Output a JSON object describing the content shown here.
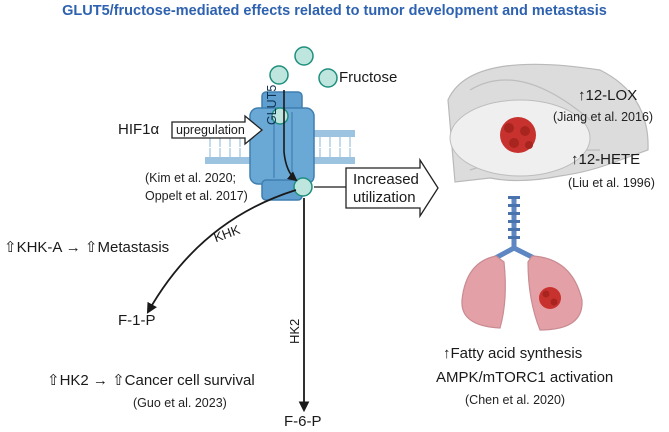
{
  "title": "GLUT5/fructose-mediated effects related to tumor development and metastasis",
  "fructose_label": "Fructose",
  "hif_label": "HIF1α",
  "upregulation_label": "upregulation",
  "transporter_label": "GLUT5",
  "citation_kim": "(Kim et al. 2020;",
  "citation_oppelt": "Oppelt et al. 2017)",
  "increased_line1": "Increased",
  "increased_line2": "utilization",
  "khk_label": "KHK",
  "hk2_label": "HK2",
  "khk_effect": "⇧KHK-A → ⇧Metastasis",
  "f1p_label": "F-1-P",
  "f6p_label": "F-6-P",
  "hk2_effect": "⇧HK2 → ⇧Cancer cell survival",
  "citation_guo": "(Guo et al. 2023)",
  "lox_label": "↑12-LOX",
  "citation_jiang": "(Jiang et al. 2016)",
  "hete_label": "↑12-HETE",
  "citation_liu": "(Liu et al. 1996)",
  "fatty_label": "↑Fatty acid synthesis",
  "ampk_label": "AMPK/mTORC1 activation",
  "citation_chen": "(Chen et al. 2020)",
  "colors": {
    "title": "#2e62b0",
    "fructose_fill": "#bfe6de",
    "fructose_stroke": "#1f8f7e",
    "glut5_fill": "#5f9fcf",
    "glut5_dark": "#3f7fb0",
    "membrane": "#9cc3e0",
    "tumor": "#c8322e",
    "lung": "#e3a0a6",
    "trachea": "#5d86c2"
  }
}
